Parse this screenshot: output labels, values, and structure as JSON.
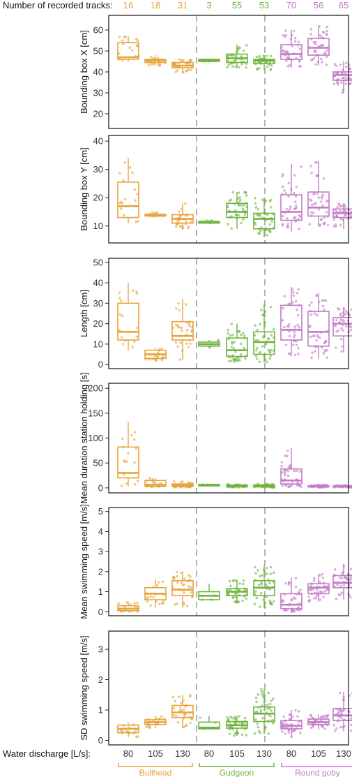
{
  "header": {
    "tracks_label": "Number of recorded tracks:"
  },
  "footer": {
    "discharge_label": "Water discharge [L/s]:"
  },
  "groups": [
    {
      "name": "Bullhead",
      "color": "#E6A33A"
    },
    {
      "name": "Gudgeon",
      "color": "#6FB43F"
    },
    {
      "name": "Round goby",
      "color": "#C27BC7"
    }
  ],
  "discharge_levels": [
    "80",
    "105",
    "130",
    "80",
    "105",
    "130",
    "80",
    "105",
    "130"
  ],
  "track_counts": [
    "16",
    "18",
    "31",
    "3",
    "55",
    "53",
    "70",
    "56",
    "65"
  ],
  "chart_data": [
    {
      "type": "box",
      "ylabel": "Bounding box X [cm]",
      "ylim": [
        13,
        67
      ],
      "yticks": [
        20,
        30,
        40,
        50,
        60
      ],
      "boxes": [
        {
          "q1": 46,
          "median": 47,
          "q3": 54,
          "lo": 45,
          "hi": 57
        },
        {
          "q1": 44.5,
          "median": 45.5,
          "q3": 46,
          "lo": 43,
          "hi": 48
        },
        {
          "q1": 42,
          "median": 43,
          "q3": 44.5,
          "lo": 39,
          "hi": 46
        },
        {
          "q1": 45,
          "median": 45.5,
          "q3": 46,
          "lo": 45,
          "hi": 46
        },
        {
          "q1": 44.5,
          "median": 46.5,
          "q3": 48.5,
          "lo": 42,
          "hi": 53
        },
        {
          "q1": 44,
          "median": 45.5,
          "q3": 46,
          "lo": 41,
          "hi": 48
        },
        {
          "q1": 46,
          "median": 48.5,
          "q3": 53,
          "lo": 42,
          "hi": 60
        },
        {
          "q1": 48,
          "median": 51.5,
          "q3": 56,
          "lo": 43,
          "hi": 62
        },
        {
          "q1": 36,
          "median": 38.5,
          "q3": 40,
          "lo": 30,
          "hi": 45
        }
      ]
    },
    {
      "type": "box",
      "ylabel": "Bounding box Y [cm]",
      "ylim": [
        4,
        42
      ],
      "yticks": [
        10,
        20,
        30,
        40
      ],
      "boxes": [
        {
          "q1": 13,
          "median": 17,
          "q3": 25.5,
          "lo": 11,
          "hi": 34
        },
        {
          "q1": 13.5,
          "median": 14,
          "q3": 14,
          "lo": 13,
          "hi": 15
        },
        {
          "q1": 11,
          "median": 12.5,
          "q3": 14,
          "lo": 9,
          "hi": 18
        },
        {
          "q1": 11,
          "median": 11.5,
          "q3": 11.5,
          "lo": 11,
          "hi": 12
        },
        {
          "q1": 13,
          "median": 15,
          "q3": 18,
          "lo": 9,
          "hi": 22
        },
        {
          "q1": 9,
          "median": 12.5,
          "q3": 14.5,
          "lo": 6,
          "hi": 20
        },
        {
          "q1": 12,
          "median": 15,
          "q3": 21,
          "lo": 8,
          "hi": 32
        },
        {
          "q1": 13.5,
          "median": 16.5,
          "q3": 22,
          "lo": 10,
          "hi": 33
        },
        {
          "q1": 13,
          "median": 14.5,
          "q3": 16,
          "lo": 9,
          "hi": 18
        }
      ]
    },
    {
      "type": "box",
      "ylabel": "Length [cm]",
      "ylim": [
        -2,
        52
      ],
      "yticks": [
        0,
        10,
        20,
        30,
        40,
        50
      ],
      "boxes": [
        {
          "q1": 12,
          "median": 16,
          "q3": 30,
          "lo": 7,
          "hi": 40
        },
        {
          "q1": 3,
          "median": 5,
          "q3": 7,
          "lo": 2,
          "hi": 8
        },
        {
          "q1": 12,
          "median": 14,
          "q3": 21,
          "lo": 2,
          "hi": 32
        },
        {
          "q1": 9,
          "median": 10,
          "q3": 11,
          "lo": 8,
          "hi": 12
        },
        {
          "q1": 4,
          "median": 7,
          "q3": 13,
          "lo": 1,
          "hi": 20
        },
        {
          "q1": 5,
          "median": 11,
          "q3": 16,
          "lo": 1,
          "hi": 30
        },
        {
          "q1": 12,
          "median": 17,
          "q3": 29,
          "lo": 4,
          "hi": 38
        },
        {
          "q1": 9,
          "median": 16,
          "q3": 26,
          "lo": 3,
          "hi": 35
        },
        {
          "q1": 14,
          "median": 20,
          "q3": 23,
          "lo": 6,
          "hi": 28
        }
      ]
    },
    {
      "type": "box",
      "ylabel": "Mean duration station holding [s]",
      "ylim": [
        -10,
        210
      ],
      "yticks": [
        0,
        50,
        100,
        150,
        200
      ],
      "boxes": [
        {
          "q1": 20,
          "median": 30,
          "q3": 82,
          "lo": 3,
          "hi": 132
        },
        {
          "q1": 3,
          "median": 6,
          "q3": 15,
          "lo": 1,
          "hi": 20
        },
        {
          "q1": 3,
          "median": 5,
          "q3": 8,
          "lo": 1,
          "hi": 15
        },
        {
          "q1": 4,
          "median": 5,
          "q3": 7,
          "lo": 3,
          "hi": 8
        },
        {
          "q1": 2,
          "median": 3,
          "q3": 5,
          "lo": 1,
          "hi": 7
        },
        {
          "q1": 2,
          "median": 4,
          "q3": 6,
          "lo": 1,
          "hi": 8
        },
        {
          "q1": 8,
          "median": 15,
          "q3": 38,
          "lo": 2,
          "hi": 80
        },
        {
          "q1": 2,
          "median": 3,
          "q3": 4,
          "lo": 1,
          "hi": 6
        },
        {
          "q1": 2,
          "median": 3,
          "q3": 4,
          "lo": 1,
          "hi": 5
        }
      ]
    },
    {
      "type": "box",
      "ylabel": "Mean swimming speed [m/s]",
      "ylim": [
        -0.2,
        5.2
      ],
      "yticks": [
        0,
        1,
        2,
        3,
        4,
        5
      ],
      "boxes": [
        {
          "q1": 0.05,
          "median": 0.15,
          "q3": 0.3,
          "lo": 0,
          "hi": 0.5
        },
        {
          "q1": 0.6,
          "median": 0.9,
          "q3": 1.2,
          "lo": 0.2,
          "hi": 1.6
        },
        {
          "q1": 0.8,
          "median": 1.1,
          "q3": 1.55,
          "lo": 0.2,
          "hi": 2.0
        },
        {
          "q1": 0.6,
          "median": 0.8,
          "q3": 1.0,
          "lo": 0.6,
          "hi": 1.4
        },
        {
          "q1": 0.8,
          "median": 1.0,
          "q3": 1.15,
          "lo": 0.4,
          "hi": 1.6
        },
        {
          "q1": 0.8,
          "median": 1.2,
          "q3": 1.55,
          "lo": 0.2,
          "hi": 2.3
        },
        {
          "q1": 0.15,
          "median": 0.35,
          "q3": 0.9,
          "lo": 0,
          "hi": 1.7
        },
        {
          "q1": 0.9,
          "median": 1.2,
          "q3": 1.4,
          "lo": 0.5,
          "hi": 1.9
        },
        {
          "q1": 1.2,
          "median": 1.45,
          "q3": 1.8,
          "lo": 0.6,
          "hi": 2.4
        }
      ]
    },
    {
      "type": "box",
      "ylabel": "SD swimming speed [m/s]",
      "ylim": [
        -0.15,
        3.6
      ],
      "yticks": [
        0,
        1,
        2,
        3
      ],
      "boxes": [
        {
          "q1": 0.25,
          "median": 0.38,
          "q3": 0.5,
          "lo": 0.1,
          "hi": 0.6
        },
        {
          "q1": 0.52,
          "median": 0.6,
          "q3": 0.68,
          "lo": 0.4,
          "hi": 0.8
        },
        {
          "q1": 0.75,
          "median": 0.92,
          "q3": 1.15,
          "lo": 0.4,
          "hi": 1.5
        },
        {
          "q1": 0.38,
          "median": 0.42,
          "q3": 0.6,
          "lo": 0.35,
          "hi": 0.8
        },
        {
          "q1": 0.4,
          "median": 0.5,
          "q3": 0.62,
          "lo": 0.15,
          "hi": 0.8
        },
        {
          "q1": 0.62,
          "median": 0.88,
          "q3": 1.1,
          "lo": 0.2,
          "hi": 1.7
        },
        {
          "q1": 0.38,
          "median": 0.48,
          "q3": 0.65,
          "lo": 0.1,
          "hi": 1.0
        },
        {
          "q1": 0.52,
          "median": 0.6,
          "q3": 0.7,
          "lo": 0.35,
          "hi": 0.85
        },
        {
          "q1": 0.65,
          "median": 0.82,
          "q3": 1.05,
          "lo": 0.3,
          "hi": 1.6
        }
      ]
    }
  ]
}
